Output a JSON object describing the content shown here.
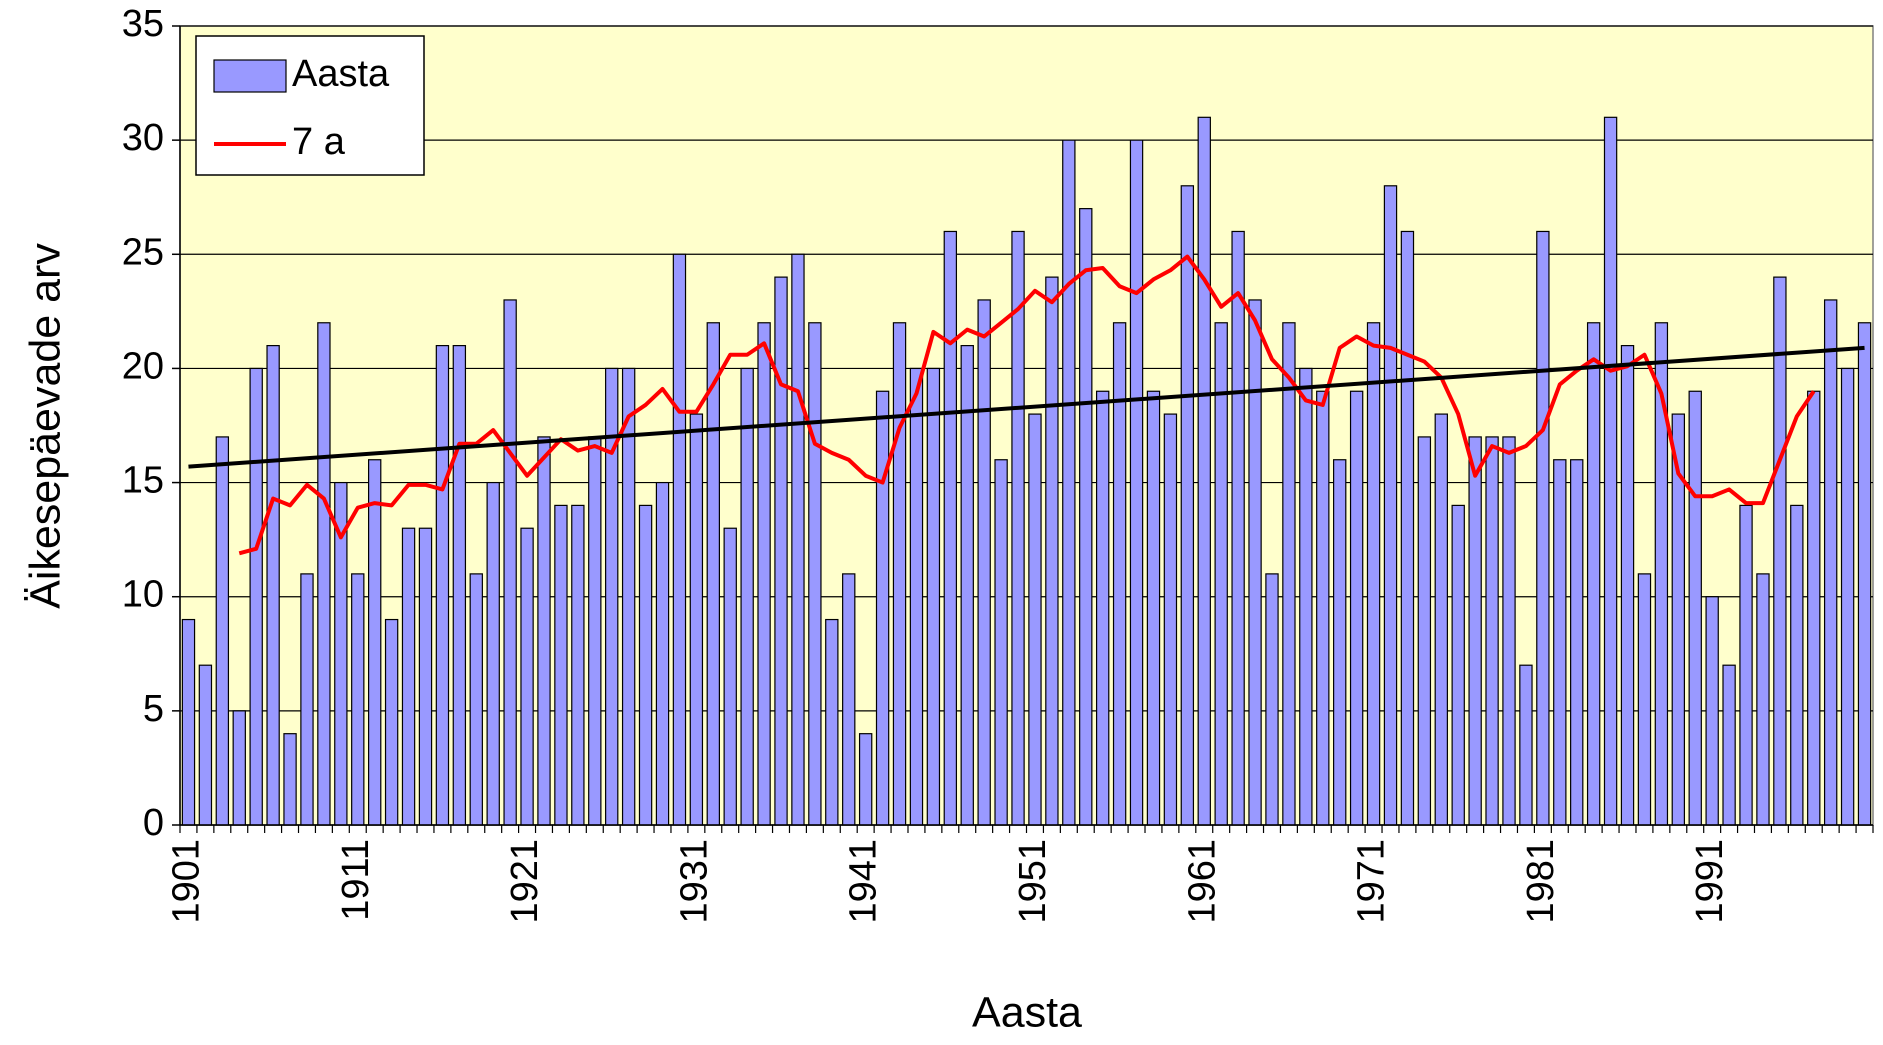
{
  "chart_data": {
    "type": "bar",
    "x_label": "Aasta",
    "y_label": "Äikesepäevade arv",
    "categories": [
      "1901",
      null,
      null,
      null,
      null,
      null,
      null,
      null,
      null,
      null,
      "1911",
      null,
      null,
      null,
      null,
      null,
      null,
      null,
      null,
      null,
      "1921",
      null,
      null,
      null,
      null,
      null,
      null,
      null,
      null,
      null,
      "1931",
      null,
      null,
      null,
      null,
      null,
      null,
      null,
      null,
      null,
      "1941",
      null,
      null,
      null,
      null,
      null,
      null,
      null,
      null,
      null,
      "1951",
      null,
      null,
      null,
      null,
      null,
      null,
      null,
      null,
      null,
      "1961",
      null,
      null,
      null,
      null,
      null,
      null,
      null,
      null,
      null,
      "1971",
      null,
      null,
      null,
      null,
      null,
      null,
      null,
      null,
      null,
      "1981",
      null,
      null,
      null,
      null,
      null,
      null,
      null,
      null,
      null,
      "1991",
      null,
      null,
      null,
      null,
      null,
      null,
      null,
      null,
      null
    ],
    "series": [
      {
        "name": "Aasta",
        "type": "bar",
        "color": "#9999ff",
        "values": [
          9,
          7,
          17,
          5,
          20,
          21,
          4,
          11,
          22,
          15,
          11,
          16,
          9,
          13,
          13,
          21,
          21,
          11,
          15,
          23,
          13,
          17,
          14,
          14,
          17,
          20,
          20,
          14,
          15,
          25,
          18,
          22,
          13,
          20,
          22,
          24,
          25,
          22,
          9,
          11,
          4,
          19,
          22,
          20,
          20,
          26,
          21,
          23,
          16,
          26,
          18,
          24,
          30,
          27,
          19,
          22,
          30,
          19,
          18,
          28,
          31,
          22,
          26,
          23,
          11,
          22,
          20,
          19,
          16,
          19,
          22,
          28,
          26,
          17,
          18,
          14,
          17,
          17,
          17,
          7,
          26,
          16,
          16,
          22,
          31,
          21,
          11,
          22,
          18,
          19,
          10,
          7,
          14,
          11,
          24,
          14,
          19,
          23,
          20,
          22
        ]
      },
      {
        "name": "7 a",
        "type": "line",
        "color": "#ff0000",
        "values": [
          null,
          null,
          null,
          11.9,
          12.1,
          14.3,
          14.0,
          14.9,
          14.3,
          12.6,
          13.9,
          14.1,
          14.0,
          14.9,
          14.9,
          14.7,
          16.7,
          16.7,
          17.3,
          16.3,
          15.3,
          16.1,
          16.9,
          16.4,
          16.6,
          16.3,
          17.9,
          18.4,
          19.1,
          18.1,
          18.1,
          19.3,
          20.6,
          20.6,
          21.1,
          19.3,
          19.0,
          16.7,
          16.3,
          16.0,
          15.3,
          15.0,
          17.4,
          18.9,
          21.6,
          21.1,
          21.7,
          21.4,
          22.0,
          22.6,
          23.4,
          22.9,
          23.7,
          24.3,
          24.4,
          23.6,
          23.3,
          23.9,
          24.3,
          24.9,
          23.9,
          22.7,
          23.3,
          22.1,
          20.4,
          19.6,
          18.6,
          18.4,
          20.9,
          21.4,
          21.0,
          20.9,
          20.6,
          20.3,
          19.6,
          18.0,
          15.3,
          16.6,
          16.3,
          16.6,
          17.3,
          19.3,
          19.9,
          20.4,
          19.9,
          20.1,
          20.6,
          18.9,
          15.4,
          14.4,
          14.4,
          14.7,
          14.1,
          14.1,
          16.0,
          17.9,
          19.0,
          null,
          null,
          null
        ]
      }
    ],
    "trendline": {
      "color": "#000000",
      "values": [
        15.7,
        20.9
      ]
    },
    "ylim": [
      0,
      35
    ],
    "yticks": [
      0,
      5,
      10,
      15,
      20,
      25,
      30,
      35
    ],
    "grid": true,
    "plot_background": "#ffffcc",
    "legend": "top-left"
  }
}
